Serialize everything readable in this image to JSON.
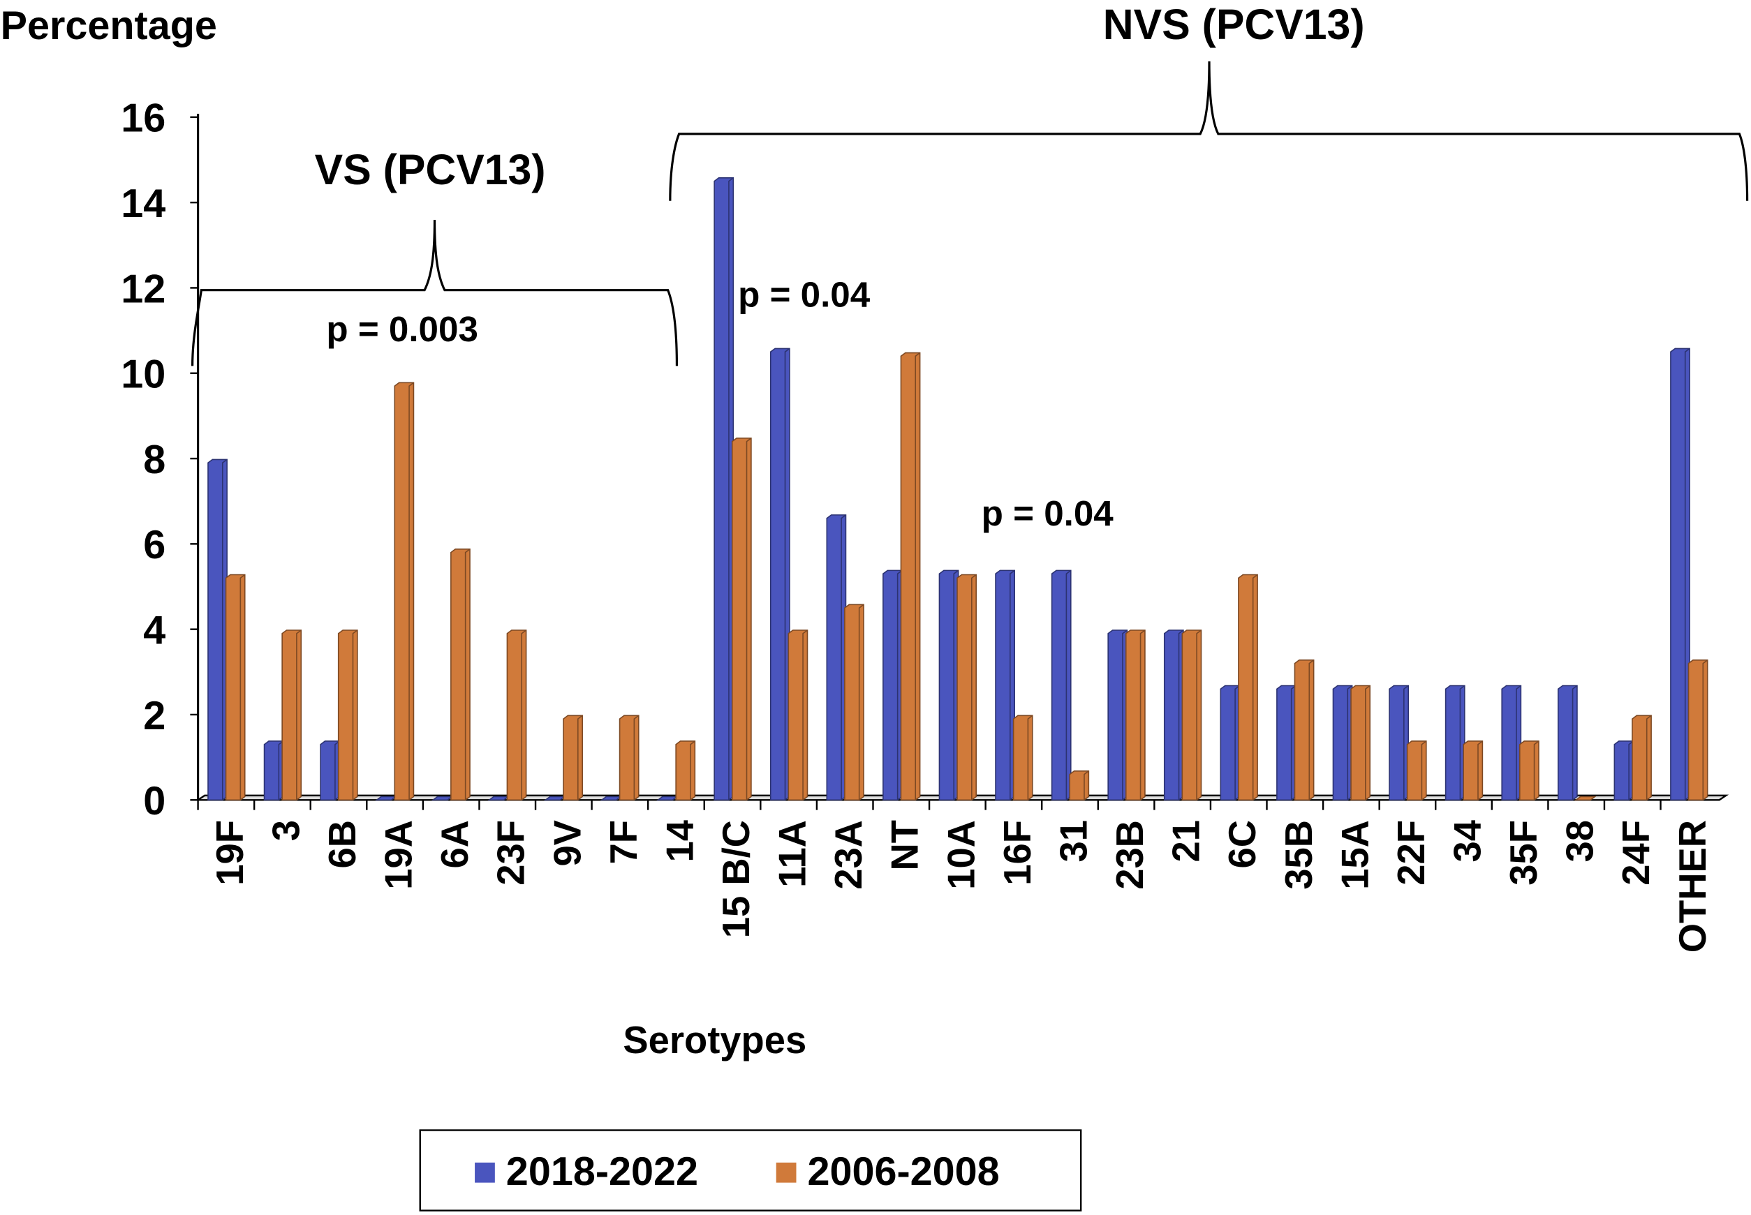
{
  "chart_data": {
    "type": "bar",
    "y_label": "Percentage",
    "x_label": "Serotypes",
    "categories": [
      "19F",
      "3",
      "6B",
      "19A",
      "6A",
      "23F",
      "9V",
      "7F",
      "14",
      "15 B/C",
      "11A",
      "23A",
      "NT",
      "10A",
      "16F",
      "31",
      "23B",
      "21",
      "6C",
      "35B",
      "15A",
      "22F",
      "34",
      "35F",
      "38",
      "24F",
      "OTHER"
    ],
    "series": [
      {
        "name": "2018-2022",
        "color": "#4a55be",
        "values": [
          7.9,
          1.3,
          1.3,
          0,
          0,
          0,
          0,
          0,
          0,
          14.5,
          10.5,
          6.6,
          5.3,
          5.3,
          5.3,
          5.3,
          3.9,
          3.9,
          2.6,
          2.6,
          2.6,
          2.6,
          2.6,
          2.6,
          2.6,
          1.3,
          10.5
        ]
      },
      {
        "name": "2006-2008",
        "color": "#d07a3a",
        "values": [
          5.2,
          3.9,
          3.9,
          9.7,
          5.8,
          3.9,
          1.9,
          1.9,
          1.3,
          8.4,
          3.9,
          4.5,
          10.4,
          5.2,
          1.9,
          0.6,
          3.9,
          3.9,
          5.2,
          3.2,
          2.6,
          1.3,
          1.3,
          1.3,
          0,
          1.9,
          3.2
        ]
      }
    ],
    "ylim": [
      0,
      16
    ],
    "yticks": [
      0,
      2,
      4,
      6,
      8,
      10,
      12,
      14,
      16
    ],
    "annotations": [
      "VS (PCV13)",
      "NVS (PCV13)",
      "p = 0.003",
      "p = 0.04",
      "p = 0.04"
    ]
  }
}
